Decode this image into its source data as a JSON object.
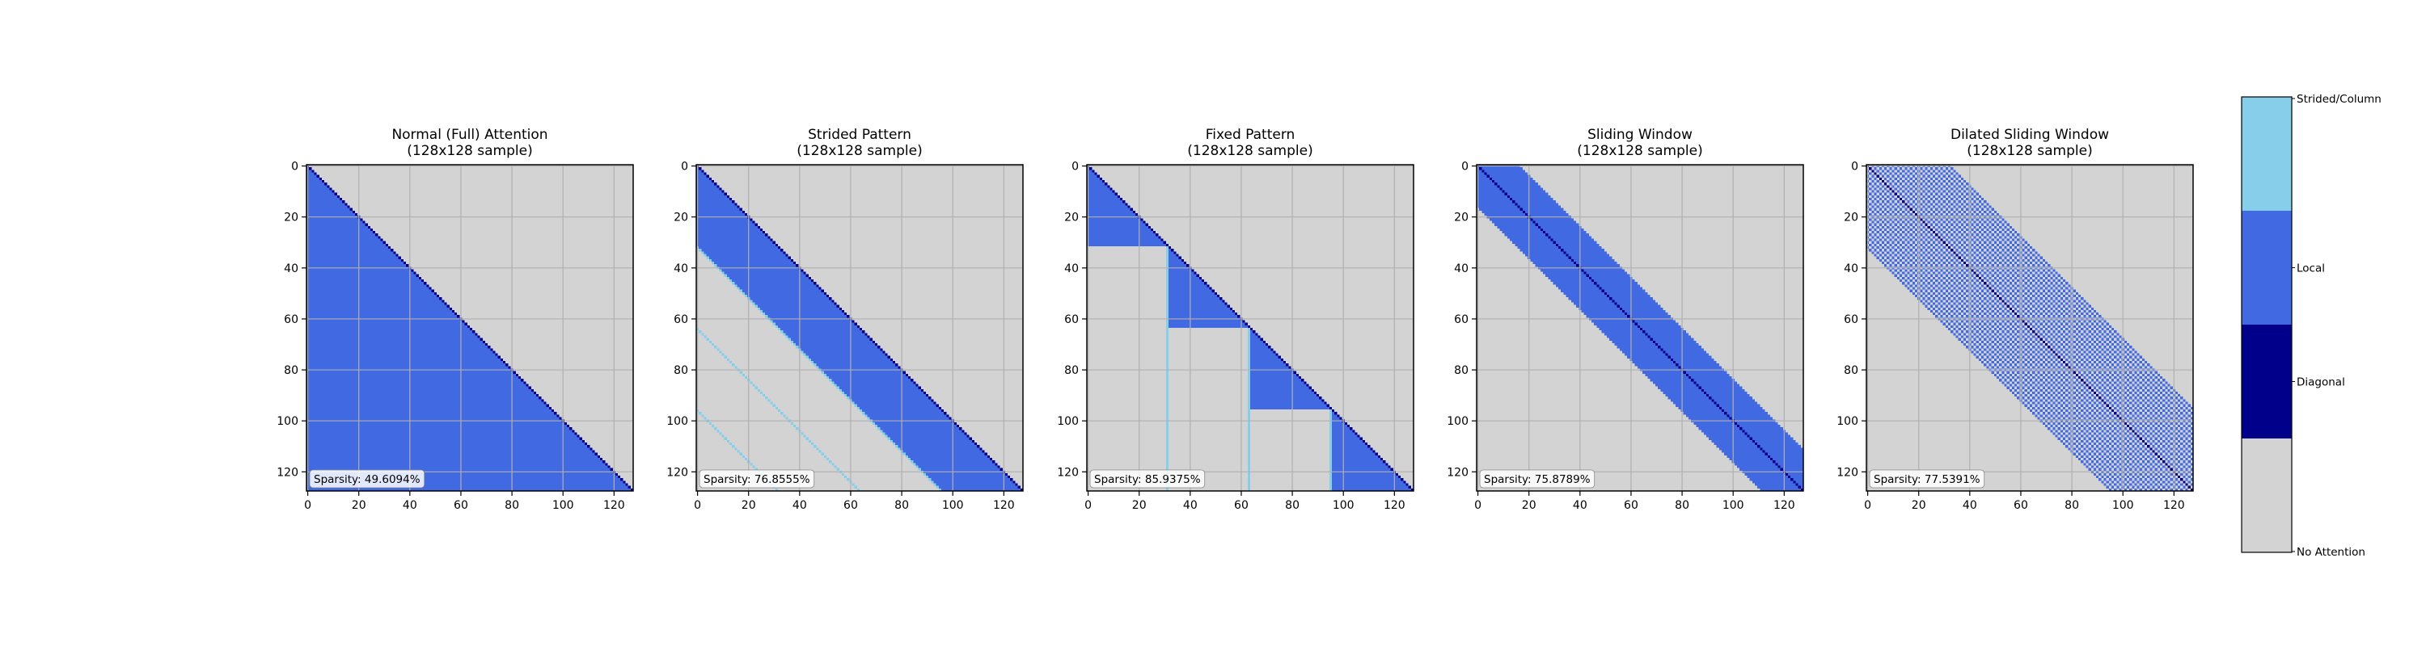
{
  "colors": {
    "no_attention": "#d3d3d3",
    "diagonal": "#00008b",
    "local": "#4169e1",
    "strided_column": "#87ceeb",
    "grid": "#b0b0b0",
    "axis": "#000000"
  },
  "colorbar": {
    "labels": [
      "Strided/Column",
      "Local",
      "Diagonal",
      "No Attention"
    ]
  },
  "chart_data": [
    {
      "type": "heatmap",
      "pattern": "full",
      "title": "Normal (Full) Attention",
      "subtitle": "(128x128 sample)",
      "size": 128,
      "sparsity": "Sparsity: 49.6094%",
      "xticks": [
        0,
        20,
        40,
        60,
        80,
        100,
        120
      ],
      "yticks": [
        0,
        20,
        40,
        60,
        80,
        100,
        120
      ],
      "grid": true
    },
    {
      "type": "heatmap",
      "pattern": "strided",
      "title": "Strided Pattern",
      "subtitle": "(128x128 sample)",
      "size": 128,
      "local_window": 32,
      "stride": 32,
      "sparsity": "Sparsity: 76.8555%",
      "xticks": [
        0,
        20,
        40,
        60,
        80,
        100,
        120
      ],
      "yticks": [
        0,
        20,
        40,
        60,
        80,
        100,
        120
      ],
      "grid": true
    },
    {
      "type": "heatmap",
      "pattern": "fixed",
      "title": "Fixed Pattern",
      "subtitle": "(128x128 sample)",
      "size": 128,
      "block": 32,
      "sparsity": "Sparsity: 85.9375%",
      "xticks": [
        0,
        20,
        40,
        60,
        80,
        100,
        120
      ],
      "yticks": [
        0,
        20,
        40,
        60,
        80,
        100,
        120
      ],
      "grid": true
    },
    {
      "type": "heatmap",
      "pattern": "sliding",
      "title": "Sliding Window",
      "subtitle": "(128x128 sample)",
      "size": 128,
      "window": 16,
      "sparsity": "Sparsity: 75.8789%",
      "xticks": [
        0,
        20,
        40,
        60,
        80,
        100,
        120
      ],
      "yticks": [
        0,
        20,
        40,
        60,
        80,
        100,
        120
      ],
      "grid": true
    },
    {
      "type": "heatmap",
      "pattern": "dilated",
      "title": "Dilated Sliding Window",
      "subtitle": "(128x128 sample)",
      "size": 128,
      "window": 32,
      "dilation": 2,
      "sparsity": "Sparsity: 77.5391%",
      "xticks": [
        0,
        20,
        40,
        60,
        80,
        100,
        120
      ],
      "yticks": [
        0,
        20,
        40,
        60,
        80,
        100,
        120
      ],
      "grid": true
    }
  ]
}
